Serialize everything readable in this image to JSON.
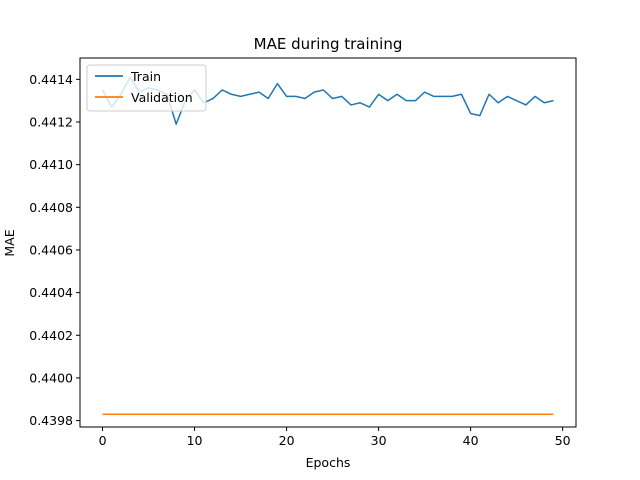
{
  "chart_data": {
    "type": "line",
    "title": "MAE during training",
    "xlabel": "Epochs",
    "ylabel": "MAE",
    "xlim": [
      -2.45,
      51.45
    ],
    "ylim": [
      0.43977,
      0.4415
    ],
    "xticks": [
      0,
      10,
      20,
      30,
      40,
      50
    ],
    "xtick_labels": [
      "0",
      "10",
      "20",
      "30",
      "40",
      "50"
    ],
    "yticks": [
      0.4398,
      0.44,
      0.4402,
      0.4404,
      0.4406,
      0.4408,
      0.441,
      0.4412,
      0.4414
    ],
    "ytick_labels": [
      "0.4398",
      "0.4400",
      "0.4402",
      "0.4404",
      "0.4406",
      "0.4408",
      "0.4410",
      "0.4412",
      "0.4414"
    ],
    "grid": false,
    "legend_position": "top-left",
    "x": [
      0,
      1,
      2,
      3,
      4,
      5,
      6,
      7,
      8,
      9,
      10,
      11,
      12,
      13,
      14,
      15,
      16,
      17,
      18,
      19,
      20,
      21,
      22,
      23,
      24,
      25,
      26,
      27,
      28,
      29,
      30,
      31,
      32,
      33,
      34,
      35,
      36,
      37,
      38,
      39,
      40,
      41,
      42,
      43,
      44,
      45,
      46,
      47,
      48,
      49
    ],
    "series": [
      {
        "name": "Train",
        "color": "#1f77b4",
        "values": [
          0.44135,
          0.44127,
          0.44133,
          0.44141,
          0.44134,
          0.44136,
          0.44135,
          0.44133,
          0.44119,
          0.4413,
          0.44135,
          0.44129,
          0.44131,
          0.44135,
          0.44133,
          0.44132,
          0.44133,
          0.44134,
          0.44131,
          0.44138,
          0.44132,
          0.44132,
          0.44131,
          0.44134,
          0.44135,
          0.44131,
          0.44132,
          0.44128,
          0.44129,
          0.44127,
          0.44133,
          0.4413,
          0.44133,
          0.4413,
          0.4413,
          0.44134,
          0.44132,
          0.44132,
          0.44132,
          0.44133,
          0.44124,
          0.44123,
          0.44133,
          0.44129,
          0.44132,
          0.4413,
          0.44128,
          0.44132,
          0.44129,
          0.4413
        ]
      },
      {
        "name": "Validation",
        "color": "#ff7f0e",
        "values": [
          0.43983,
          0.43983,
          0.43983,
          0.43983,
          0.43983,
          0.43983,
          0.43983,
          0.43983,
          0.43983,
          0.43983,
          0.43983,
          0.43983,
          0.43983,
          0.43983,
          0.43983,
          0.43983,
          0.43983,
          0.43983,
          0.43983,
          0.43983,
          0.43983,
          0.43983,
          0.43983,
          0.43983,
          0.43983,
          0.43983,
          0.43983,
          0.43983,
          0.43983,
          0.43983,
          0.43983,
          0.43983,
          0.43983,
          0.43983,
          0.43983,
          0.43983,
          0.43983,
          0.43983,
          0.43983,
          0.43983,
          0.43983,
          0.43983,
          0.43983,
          0.43983,
          0.43983,
          0.43983,
          0.43983,
          0.43983,
          0.43983,
          0.43983
        ]
      }
    ]
  }
}
